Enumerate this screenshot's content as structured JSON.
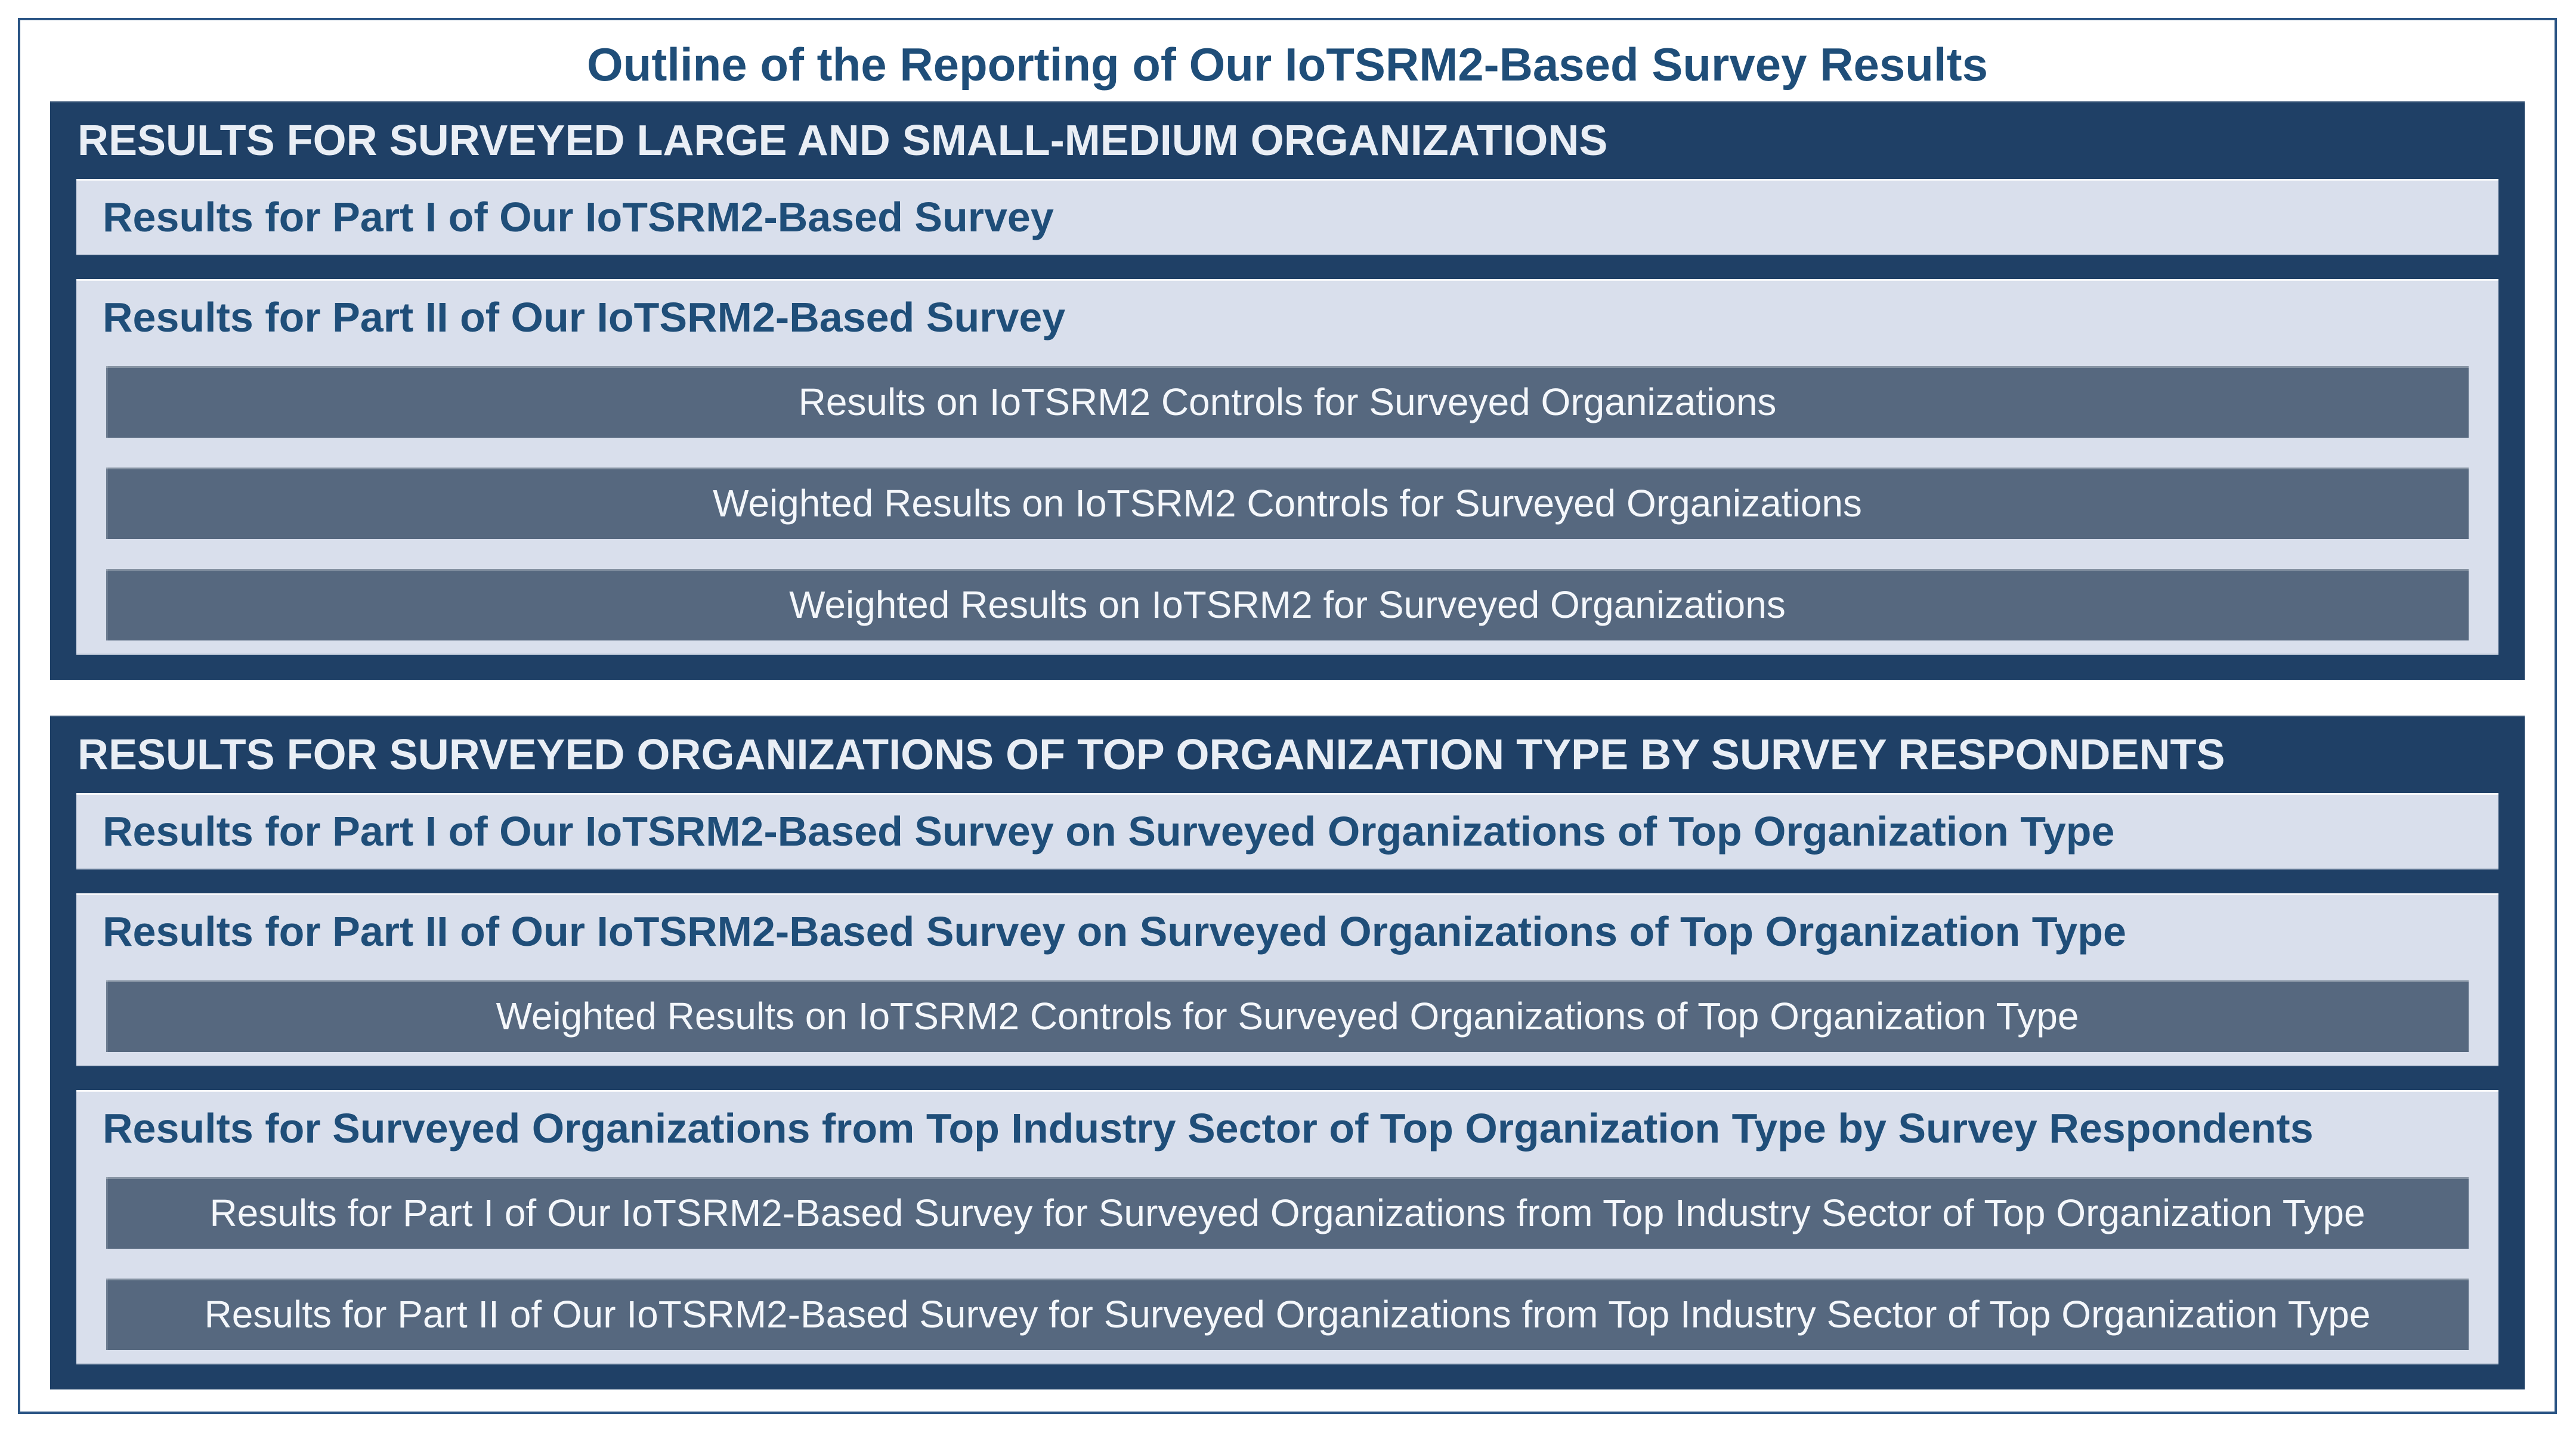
{
  "title": "Outline of the Reporting of Our IoTSRM2-Based Survey Results",
  "colors": {
    "outer_border": "#2b5585",
    "section_background": "#1f4066",
    "section_header_text": "#e9eef5",
    "panel_background": "#d9dfec",
    "heading_text": "#1f4e79",
    "bar_background": "#56687f",
    "bar_text": "#f4f7fb",
    "page_background": "#ffffff"
  },
  "sections": [
    {
      "header": "RESULTS FOR SURVEYED LARGE AND SMALL-MEDIUM ORGANIZATIONS",
      "subsections": [
        {
          "heading": "Results for Part I of Our IoTSRM2-Based Survey",
          "bars": []
        },
        {
          "heading": "Results for Part II of Our IoTSRM2-Based Survey",
          "bars": [
            "Results on IoTSRM2 Controls for Surveyed Organizations",
            "Weighted Results on IoTSRM2 Controls for Surveyed Organizations",
            "Weighted Results on IoTSRM2 for Surveyed Organizations"
          ]
        }
      ]
    },
    {
      "header": "RESULTS FOR SURVEYED ORGANIZATIONS OF TOP ORGANIZATION TYPE BY SURVEY RESPONDENTS",
      "subsections": [
        {
          "heading": "Results for Part I of Our IoTSRM2-Based Survey on Surveyed Organizations of Top Organization Type",
          "bars": []
        },
        {
          "heading": "Results for Part II of Our IoTSRM2-Based Survey on Surveyed Organizations of Top Organization Type",
          "bars": [
            "Weighted Results on IoTSRM2 Controls for Surveyed Organizations of Top Organization Type"
          ]
        },
        {
          "heading": "Results for Surveyed Organizations from Top Industry Sector of Top Organization Type by Survey Respondents",
          "bars": [
            "Results for Part I of Our IoTSRM2-Based Survey for Surveyed Organizations from Top Industry Sector of Top Organization Type",
            "Results for Part II of Our IoTSRM2-Based Survey for Surveyed Organizations from Top Industry Sector of Top Organization Type"
          ]
        }
      ]
    }
  ]
}
